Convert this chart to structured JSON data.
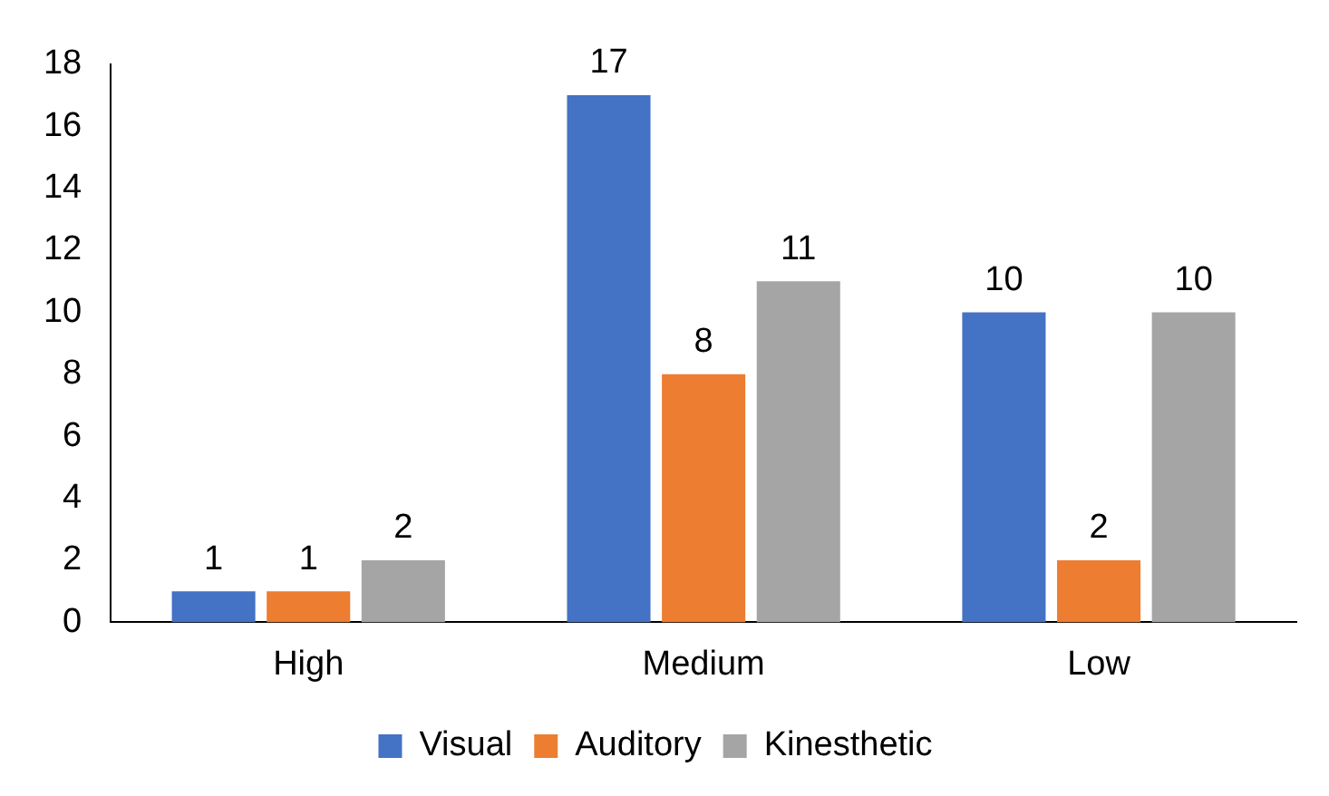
{
  "chart_data": {
    "type": "bar",
    "categories": [
      "High",
      "Medium",
      "Low"
    ],
    "series": [
      {
        "name": "Visual",
        "color": "#4472c4",
        "values": [
          1,
          17,
          10
        ]
      },
      {
        "name": "Auditory",
        "color": "#ed7d31",
        "values": [
          1,
          8,
          2
        ]
      },
      {
        "name": "Kinesthetic",
        "color": "#a5a5a5",
        "values": [
          2,
          11,
          10
        ]
      }
    ],
    "ylim": [
      0,
      18
    ],
    "yticks": [
      0,
      2,
      4,
      6,
      8,
      10,
      12,
      14,
      16,
      18
    ],
    "grid": false,
    "legend": "bottom",
    "data_labels": true
  }
}
